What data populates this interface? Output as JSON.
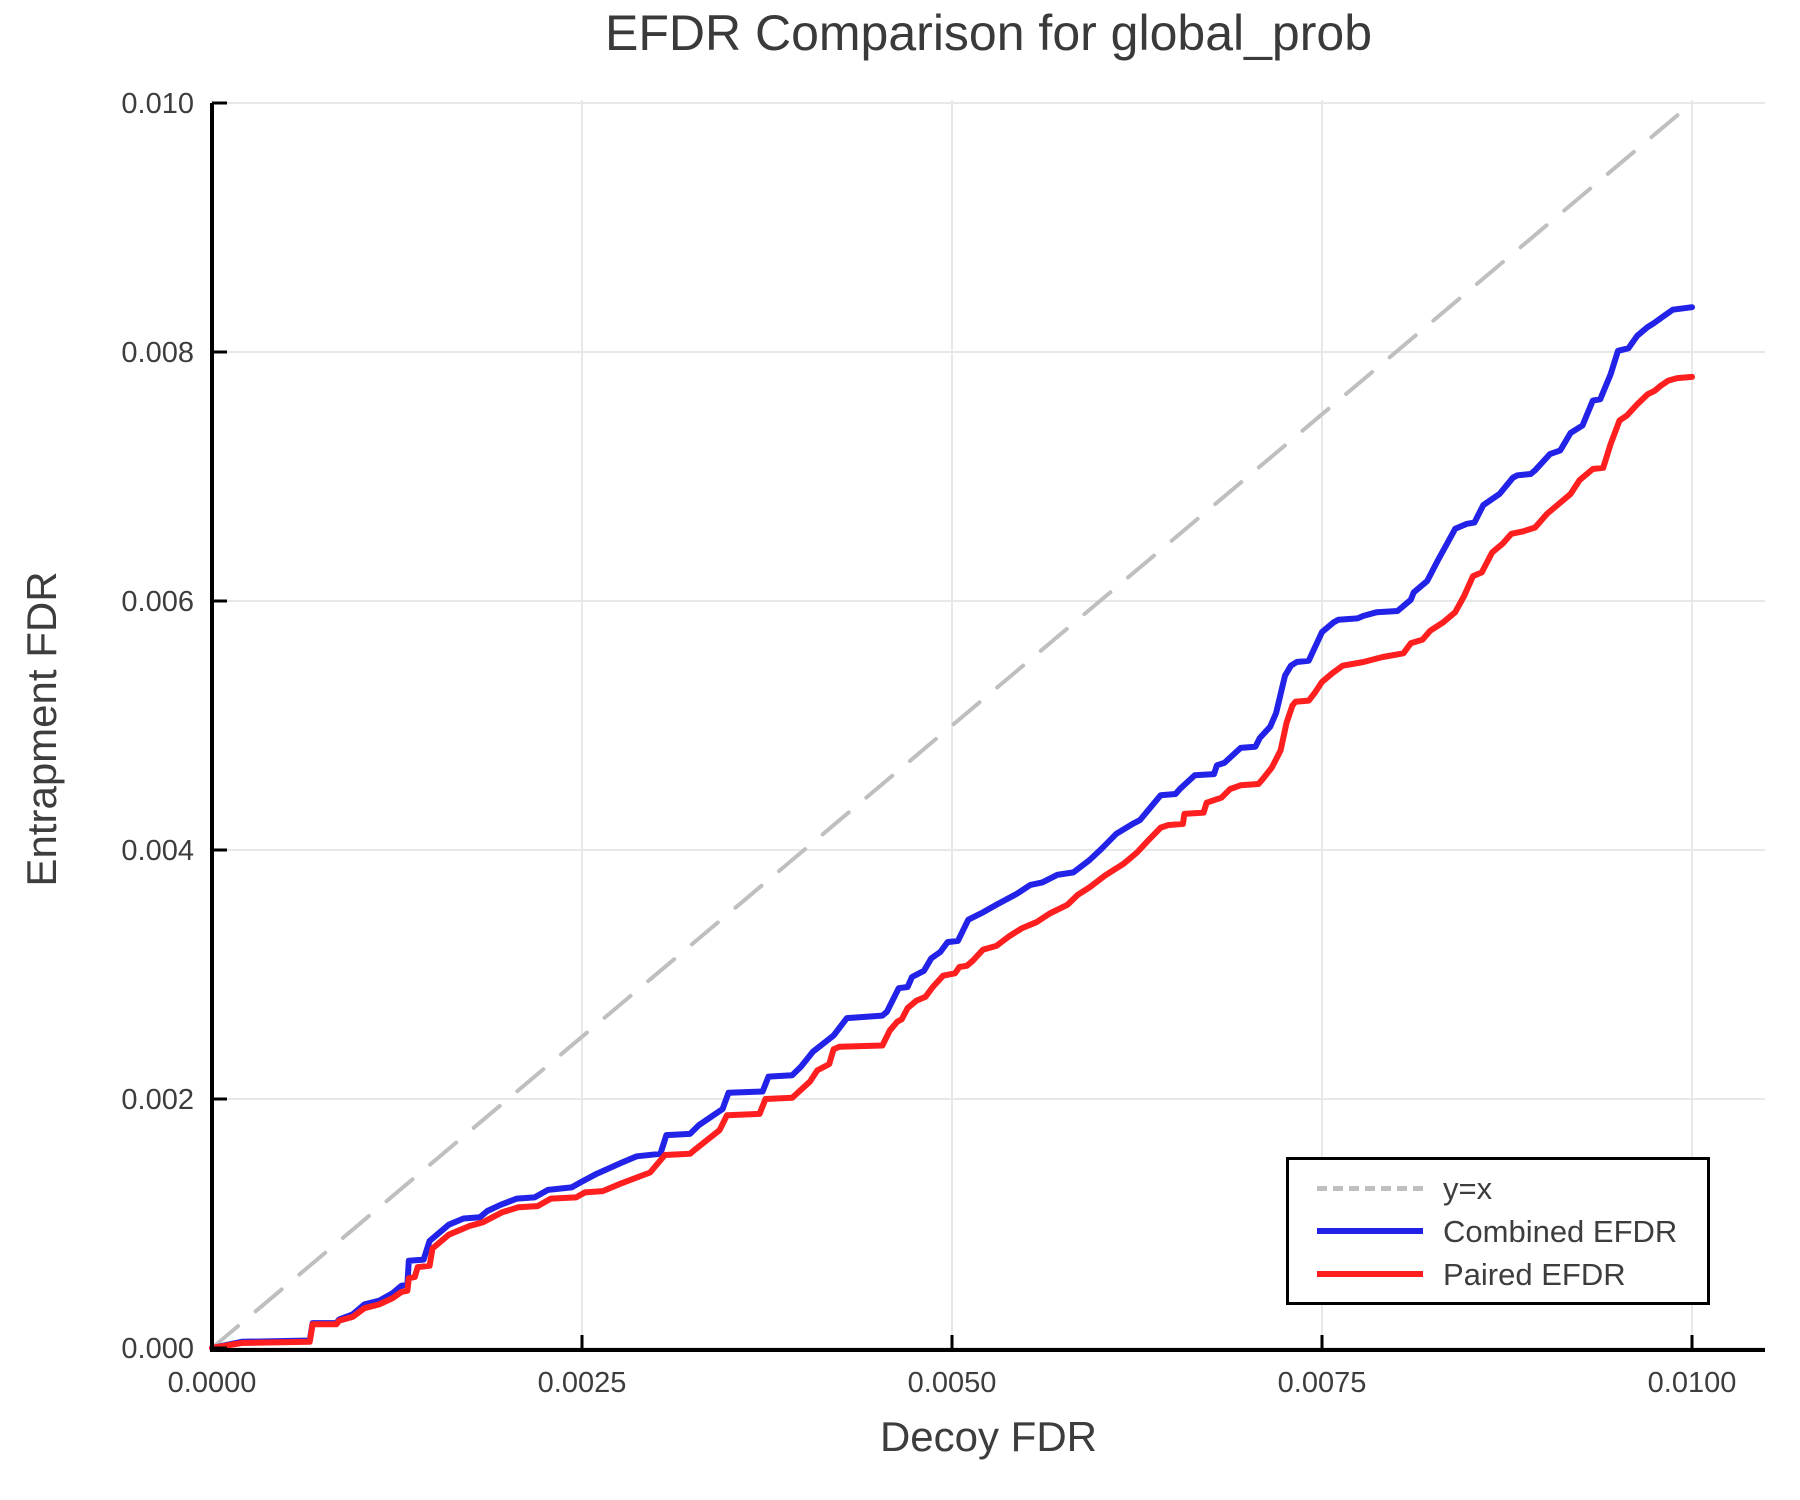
{
  "title": "EFDR Comparison for global_prob",
  "colors": {
    "combined_line": "#2222e8",
    "paired_line": "#ff1f1f",
    "identity_line": "#bfbfbf",
    "grid": "#e8e8e8",
    "axis": "#000000",
    "text": "#3d3d3d"
  },
  "legend": {
    "entries": [
      {
        "label": "y=x",
        "style": "dashed",
        "color": "#bfbfbf"
      },
      {
        "label": "Combined EFDR",
        "style": "solid",
        "color": "#2222e8"
      },
      {
        "label": "Paired EFDR",
        "style": "solid",
        "color": "#ff1f1f"
      }
    ],
    "position": "bottom-right"
  },
  "chart_data": {
    "type": "line",
    "title": "EFDR Comparison for global_prob",
    "xlabel": "Decoy FDR",
    "ylabel": "Entrapment FDR",
    "xlim": [
      0,
      0.0105
    ],
    "ylim": [
      0,
      0.01
    ],
    "grid": true,
    "legend_position": "bottom-right",
    "xticks": {
      "values": [
        0,
        0.0025,
        0.005,
        0.0075,
        0.01
      ],
      "labels": [
        "0.0000",
        "0.0025",
        "0.0050",
        "0.0075",
        "0.0100"
      ]
    },
    "yticks": {
      "values": [
        0,
        0.002,
        0.004,
        0.006,
        0.008,
        0.01
      ],
      "labels": [
        "0.000",
        "0.002",
        "0.004",
        "0.006",
        "0.008",
        "0.010"
      ]
    },
    "series": [
      {
        "name": "y=x",
        "style": "dashed",
        "color": "#bfbfbf",
        "points": [
          [
            0,
            0
          ],
          [
            0.01,
            0.01
          ]
        ]
      },
      {
        "name": "Combined EFDR",
        "style": "solid",
        "color": "#2222e8",
        "points": [
          [
            0,
            0
          ],
          [
            0.0002,
            5e-05
          ],
          [
            0.00066,
            6e-05
          ],
          [
            0.00068,
            0.0002
          ],
          [
            0.00084,
            0.0002
          ],
          [
            0.00086,
            0.00023
          ],
          [
            0.00095,
            0.00027
          ],
          [
            0.00103,
            0.00035
          ],
          [
            0.00113,
            0.00038
          ],
          [
            0.00122,
            0.00044
          ],
          [
            0.00128,
            0.0005
          ],
          [
            0.00132,
            0.00051
          ],
          [
            0.00133,
            0.0007
          ],
          [
            0.00143,
            0.00071
          ],
          [
            0.00147,
            0.00086
          ],
          [
            0.0016,
            0.00099
          ],
          [
            0.0017,
            0.00104
          ],
          [
            0.00181,
            0.00105
          ],
          [
            0.00186,
            0.0011
          ],
          [
            0.00195,
            0.00115
          ],
          [
            0.00206,
            0.0012
          ],
          [
            0.00218,
            0.00121
          ],
          [
            0.00227,
            0.00127
          ],
          [
            0.00243,
            0.00129
          ],
          [
            0.00249,
            0.00133
          ],
          [
            0.0026,
            0.0014
          ],
          [
            0.00277,
            0.00149
          ],
          [
            0.00287,
            0.00154
          ],
          [
            0.00303,
            0.00156
          ],
          [
            0.00307,
            0.00171
          ],
          [
            0.00323,
            0.00172
          ],
          [
            0.00329,
            0.00179
          ],
          [
            0.00345,
            0.00192
          ],
          [
            0.00349,
            0.00205
          ],
          [
            0.00372,
            0.00206
          ],
          [
            0.00376,
            0.00218
          ],
          [
            0.00392,
            0.00219
          ],
          [
            0.00398,
            0.00226
          ],
          [
            0.00406,
            0.00238
          ],
          [
            0.0042,
            0.00251
          ],
          [
            0.00429,
            0.00265
          ],
          [
            0.00453,
            0.00267
          ],
          [
            0.00456,
            0.0027
          ],
          [
            0.00464,
            0.00289
          ],
          [
            0.0047,
            0.0029
          ],
          [
            0.00473,
            0.00298
          ],
          [
            0.00481,
            0.00303
          ],
          [
            0.00486,
            0.00313
          ],
          [
            0.00492,
            0.00318
          ],
          [
            0.00497,
            0.00326
          ],
          [
            0.00504,
            0.00327
          ],
          [
            0.00511,
            0.00344
          ],
          [
            0.00521,
            0.0035
          ],
          [
            0.0053,
            0.00356
          ],
          [
            0.00544,
            0.00365
          ],
          [
            0.00553,
            0.00372
          ],
          [
            0.00561,
            0.00374
          ],
          [
            0.00571,
            0.0038
          ],
          [
            0.00582,
            0.00382
          ],
          [
            0.00593,
            0.00392
          ],
          [
            0.00601,
            0.00401
          ],
          [
            0.00611,
            0.00413
          ],
          [
            0.00622,
            0.00421
          ],
          [
            0.00627,
            0.00424
          ],
          [
            0.00641,
            0.00444
          ],
          [
            0.00651,
            0.00445
          ],
          [
            0.00654,
            0.00449
          ],
          [
            0.00664,
            0.0046
          ],
          [
            0.00677,
            0.00461
          ],
          [
            0.00679,
            0.00468
          ],
          [
            0.00684,
            0.0047
          ],
          [
            0.00695,
            0.00482
          ],
          [
            0.00705,
            0.00483
          ],
          [
            0.00708,
            0.0049
          ],
          [
            0.00715,
            0.00499
          ],
          [
            0.00719,
            0.0051
          ],
          [
            0.00725,
            0.0054
          ],
          [
            0.00729,
            0.00548
          ],
          [
            0.00733,
            0.00551
          ],
          [
            0.00741,
            0.00552
          ],
          [
            0.0075,
            0.00575
          ],
          [
            0.00758,
            0.00583
          ],
          [
            0.00761,
            0.00585
          ],
          [
            0.00774,
            0.00586
          ],
          [
            0.00778,
            0.00588
          ],
          [
            0.00787,
            0.00591
          ],
          [
            0.00801,
            0.00592
          ],
          [
            0.0081,
            0.00601
          ],
          [
            0.00812,
            0.00607
          ],
          [
            0.00821,
            0.00616
          ],
          [
            0.00828,
            0.00632
          ],
          [
            0.0084,
            0.00658
          ],
          [
            0.00848,
            0.00662
          ],
          [
            0.00853,
            0.00663
          ],
          [
            0.00859,
            0.00677
          ],
          [
            0.0087,
            0.00686
          ],
          [
            0.00879,
            0.00699
          ],
          [
            0.00882,
            0.00701
          ],
          [
            0.00891,
            0.00702
          ],
          [
            0.00894,
            0.00705
          ],
          [
            0.00904,
            0.00718
          ],
          [
            0.00911,
            0.00721
          ],
          [
            0.00918,
            0.00735
          ],
          [
            0.00926,
            0.00741
          ],
          [
            0.00933,
            0.00761
          ],
          [
            0.00938,
            0.00762
          ],
          [
            0.00945,
            0.00782
          ],
          [
            0.0095,
            0.00801
          ],
          [
            0.00957,
            0.00803
          ],
          [
            0.00963,
            0.00813
          ],
          [
            0.0097,
            0.0082
          ],
          [
            0.00974,
            0.00823
          ],
          [
            0.00981,
            0.00829
          ],
          [
            0.00987,
            0.00834
          ],
          [
            0.01,
            0.00836
          ]
        ]
      },
      {
        "name": "Paired EFDR",
        "style": "solid",
        "color": "#ff1f1f",
        "points": [
          [
            0,
            0
          ],
          [
            0.0002,
            4e-05
          ],
          [
            0.00066,
            5e-05
          ],
          [
            0.00068,
            0.00019
          ],
          [
            0.00084,
            0.00019
          ],
          [
            0.00086,
            0.00022
          ],
          [
            0.00095,
            0.00025
          ],
          [
            0.00103,
            0.00032
          ],
          [
            0.00113,
            0.00035
          ],
          [
            0.00122,
            0.0004
          ],
          [
            0.00128,
            0.00045
          ],
          [
            0.00132,
            0.00046
          ],
          [
            0.00133,
            0.00056
          ],
          [
            0.00137,
            0.00057
          ],
          [
            0.00139,
            0.00065
          ],
          [
            0.00147,
            0.00066
          ],
          [
            0.00149,
            0.0008
          ],
          [
            0.0016,
            0.00091
          ],
          [
            0.00174,
            0.00098
          ],
          [
            0.00183,
            0.00101
          ],
          [
            0.00196,
            0.00109
          ],
          [
            0.00207,
            0.00113
          ],
          [
            0.0022,
            0.00114
          ],
          [
            0.00229,
            0.0012
          ],
          [
            0.00246,
            0.00121
          ],
          [
            0.00252,
            0.00125
          ],
          [
            0.00264,
            0.00126
          ],
          [
            0.00276,
            0.00132
          ],
          [
            0.00296,
            0.00141
          ],
          [
            0.00306,
            0.00155
          ],
          [
            0.00323,
            0.00156
          ],
          [
            0.00326,
            0.00159
          ],
          [
            0.00343,
            0.00175
          ],
          [
            0.00348,
            0.00187
          ],
          [
            0.0037,
            0.00188
          ],
          [
            0.00374,
            0.002
          ],
          [
            0.00392,
            0.00201
          ],
          [
            0.00404,
            0.00214
          ],
          [
            0.00409,
            0.00223
          ],
          [
            0.00417,
            0.00228
          ],
          [
            0.0042,
            0.0024
          ],
          [
            0.00424,
            0.00242
          ],
          [
            0.00453,
            0.00243
          ],
          [
            0.00458,
            0.00255
          ],
          [
            0.00463,
            0.00262
          ],
          [
            0.00466,
            0.00264
          ],
          [
            0.0047,
            0.00273
          ],
          [
            0.00476,
            0.00279
          ],
          [
            0.00482,
            0.00282
          ],
          [
            0.00487,
            0.0029
          ],
          [
            0.00494,
            0.00299
          ],
          [
            0.00502,
            0.00301
          ],
          [
            0.00505,
            0.00306
          ],
          [
            0.0051,
            0.00307
          ],
          [
            0.00514,
            0.00311
          ],
          [
            0.00521,
            0.0032
          ],
          [
            0.0053,
            0.00323
          ],
          [
            0.00539,
            0.00331
          ],
          [
            0.00547,
            0.00337
          ],
          [
            0.00557,
            0.00342
          ],
          [
            0.00566,
            0.00349
          ],
          [
            0.00578,
            0.00356
          ],
          [
            0.00585,
            0.00364
          ],
          [
            0.00593,
            0.0037
          ],
          [
            0.00604,
            0.0038
          ],
          [
            0.00616,
            0.00389
          ],
          [
            0.00625,
            0.00398
          ],
          [
            0.00632,
            0.00407
          ],
          [
            0.00641,
            0.00418
          ],
          [
            0.00646,
            0.0042
          ],
          [
            0.00656,
            0.00421
          ],
          [
            0.00657,
            0.00429
          ],
          [
            0.0067,
            0.0043
          ],
          [
            0.00672,
            0.00438
          ],
          [
            0.00682,
            0.00442
          ],
          [
            0.00688,
            0.00449
          ],
          [
            0.00695,
            0.00452
          ],
          [
            0.00707,
            0.00453
          ],
          [
            0.0071,
            0.00457
          ],
          [
            0.00716,
            0.00466
          ],
          [
            0.00722,
            0.0048
          ],
          [
            0.00726,
            0.00502
          ],
          [
            0.0073,
            0.00516
          ],
          [
            0.00732,
            0.00519
          ],
          [
            0.00741,
            0.0052
          ],
          [
            0.00745,
            0.00526
          ],
          [
            0.0075,
            0.00535
          ],
          [
            0.00757,
            0.00542
          ],
          [
            0.00764,
            0.00548
          ],
          [
            0.00778,
            0.00551
          ],
          [
            0.00791,
            0.00555
          ],
          [
            0.00805,
            0.00558
          ],
          [
            0.0081,
            0.00566
          ],
          [
            0.00818,
            0.00569
          ],
          [
            0.00823,
            0.00576
          ],
          [
            0.00832,
            0.00583
          ],
          [
            0.0084,
            0.00591
          ],
          [
            0.00846,
            0.00604
          ],
          [
            0.00852,
            0.0062
          ],
          [
            0.00858,
            0.00623
          ],
          [
            0.00865,
            0.00639
          ],
          [
            0.00872,
            0.00646
          ],
          [
            0.00878,
            0.00654
          ],
          [
            0.00886,
            0.00656
          ],
          [
            0.00894,
            0.00659
          ],
          [
            0.00902,
            0.0067
          ],
          [
            0.00911,
            0.00679
          ],
          [
            0.00918,
            0.00686
          ],
          [
            0.00924,
            0.00697
          ],
          [
            0.00933,
            0.00706
          ],
          [
            0.0094,
            0.00707
          ],
          [
            0.00945,
            0.00726
          ],
          [
            0.00951,
            0.00745
          ],
          [
            0.00956,
            0.00749
          ],
          [
            0.00963,
            0.00758
          ],
          [
            0.0097,
            0.00766
          ],
          [
            0.00975,
            0.00769
          ],
          [
            0.00979,
            0.00773
          ],
          [
            0.00984,
            0.00777
          ],
          [
            0.0099,
            0.00779
          ],
          [
            0.01,
            0.0078
          ]
        ]
      }
    ]
  }
}
